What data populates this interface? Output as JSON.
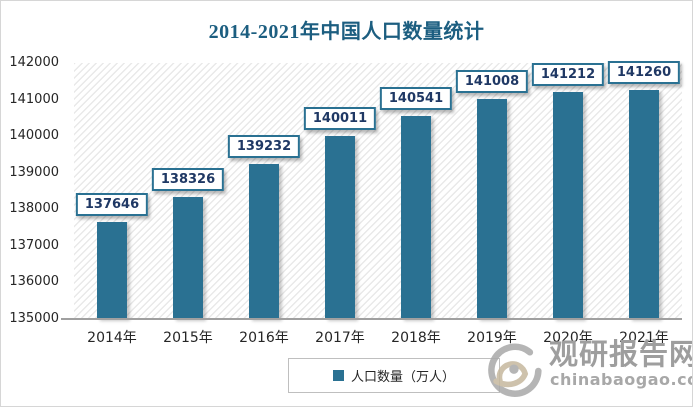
{
  "title": "2014-2021年中国人口数量统计",
  "chart_data": {
    "type": "bar",
    "title": "2014-2021年中国人口数量统计",
    "categories": [
      "2014年",
      "2015年",
      "2016年",
      "2017年",
      "2018年",
      "2019年",
      "2020年",
      "2021年"
    ],
    "series": [
      {
        "name": "人口数量（万人）",
        "color": "#2a7192",
        "values": [
          137646,
          138326,
          139232,
          140011,
          140541,
          141008,
          141212,
          141260
        ]
      }
    ],
    "data_labels": true,
    "ylim": [
      135000,
      142000
    ],
    "yticks": [
      142000,
      141000,
      140000,
      139000,
      138000,
      137000,
      136000,
      135000
    ],
    "xlabel": "",
    "ylabel": "",
    "grid": false,
    "legend_position": "bottom",
    "plot_background": "diagonal-hatch"
  },
  "legend": {
    "label": "人口数量（万人）",
    "marker_color": "#2a7192"
  },
  "watermark": {
    "site_name": "观研报告网",
    "domain": "chinabaogao.com",
    "logo": "swirl-eye-logo"
  },
  "colors": {
    "bar": "#2a7192",
    "title_text": "#1c5e80",
    "axis_text": "#262626",
    "value_label_text": "#1f3864",
    "value_label_border": "#2a7192",
    "axis_line": "#a0a0a0",
    "hatch_line": "#e9e9e9",
    "legend_border": "#bfbfbf",
    "watermark_gray": "#9e9e9e"
  }
}
